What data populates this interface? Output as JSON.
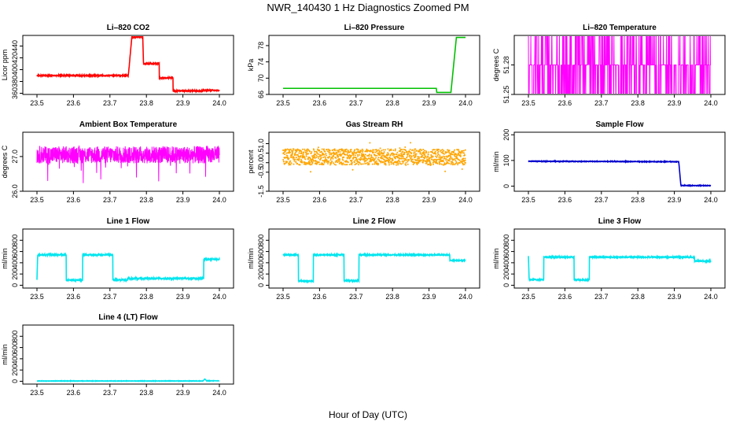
{
  "figure": {
    "title": "NWR_140430  1 Hz Diagnostics Zoomed PM",
    "xlabel": "Hour of Day (UTC)"
  },
  "chart_data": [
    {
      "type": "line",
      "title": "Li–820 CO2",
      "ylabel": "Licor ppm",
      "color": "#ff0000",
      "xlim": [
        23.5,
        24.0
      ],
      "xticks": [
        "23.5",
        "23.6",
        "23.7",
        "23.8",
        "23.9",
        "24.0"
      ],
      "ylim": [
        358,
        458
      ],
      "yticks": [
        "360",
        "380",
        "400",
        "420",
        "440"
      ],
      "noise": 0.8,
      "series": [
        {
          "x": [
            23.5,
            23.75,
            23.752,
            23.76,
            23.76,
            23.79,
            23.792,
            23.805,
            23.805,
            23.835,
            23.835,
            23.873,
            23.873,
            23.955,
            23.955,
            23.958,
            23.96,
            24.0
          ],
          "y": [
            390,
            390,
            400,
            455,
            455,
            455,
            410,
            410,
            410,
            410,
            386,
            386,
            364,
            364,
            368,
            364,
            365,
            365
          ]
        }
      ]
    },
    {
      "type": "line",
      "title": "Li–820 Pressure",
      "ylabel": "kPa",
      "color": "#00c000",
      "xlim": [
        23.5,
        24.0
      ],
      "xticks": [
        "23.5",
        "23.6",
        "23.7",
        "23.8",
        "23.9",
        "24.0"
      ],
      "ylim": [
        66,
        80.5
      ],
      "yticks": [
        "66",
        "70",
        "74",
        "78"
      ],
      "noise": 0,
      "series": [
        {
          "x": [
            23.5,
            23.92,
            23.921,
            23.96,
            23.97,
            23.975,
            24.0
          ],
          "y": [
            67.5,
            67.5,
            66.5,
            66.5,
            75.5,
            80,
            80
          ]
        }
      ]
    },
    {
      "type": "line",
      "title": "Li–820 Temperature",
      "ylabel": "degrees C",
      "color": "#ff00ff",
      "xlim": [
        23.5,
        24.0
      ],
      "xticks": [
        "23.5",
        "23.6",
        "23.7",
        "23.8",
        "23.9",
        "24.0"
      ],
      "ylim": [
        51.25,
        51.31
      ],
      "yticks": [
        "51.25",
        "51.28"
      ],
      "levels": [
        51.25,
        51.28,
        51.31
      ],
      "series": [
        {
          "name": "",
          "x": [
            23.5,
            24.0
          ],
          "y": [
            51.25,
            51.31
          ]
        }
      ]
    },
    {
      "type": "line",
      "title": "Ambient Box Temperature",
      "ylabel": "degrees C",
      "color": "#ff00ff",
      "xlim": [
        23.5,
        24.0
      ],
      "xticks": [
        "23.5",
        "23.6",
        "23.7",
        "23.8",
        "23.9",
        "24.0"
      ],
      "ylim": [
        26.0,
        27.7
      ],
      "yticks": [
        "26.0",
        "27.0"
      ],
      "noise": 0.25,
      "series": [
        {
          "x": [
            23.5,
            24.0
          ],
          "y": [
            27.05,
            27.05
          ]
        }
      ]
    },
    {
      "type": "scatter",
      "title": "Gas Stream RH",
      "ylabel": "percent",
      "color": "#ffa500",
      "xlim": [
        23.5,
        24.0
      ],
      "xticks": [
        "23.5",
        "23.6",
        "23.7",
        "23.8",
        "23.9",
        "24.0"
      ],
      "ylim": [
        -1.5,
        1.6
      ],
      "yticks": [
        "-1.5",
        "-0.5",
        "0.0",
        "0.5",
        "1.0"
      ],
      "noise": 0.42,
      "series": [
        {
          "x": [
            23.5,
            24.0
          ],
          "y": [
            0.3,
            0.3
          ]
        }
      ]
    },
    {
      "type": "line",
      "title": "Sample Flow",
      "ylabel": "ml/min",
      "color": "#0000cd",
      "xlim": [
        23.5,
        24.0
      ],
      "xticks": [
        "23.5",
        "23.6",
        "23.7",
        "23.8",
        "23.9",
        "24.0"
      ],
      "ylim": [
        -20,
        210
      ],
      "yticks": [
        "0",
        "100",
        "200"
      ],
      "noise": 1,
      "series": [
        {
          "x": [
            23.5,
            23.91,
            23.912,
            23.918,
            24.0
          ],
          "y": [
            97,
            95,
            95,
            2,
            2
          ]
        }
      ]
    },
    {
      "type": "line",
      "title": "Line 1 Flow",
      "ylabel": "ml/min",
      "color": "#00e5ee",
      "xlim": [
        23.5,
        24.0
      ],
      "xticks": [
        "23.5",
        "23.6",
        "23.7",
        "23.8",
        "23.9",
        "24.0"
      ],
      "ylim": [
        -50,
        1000
      ],
      "yticks": [
        "0",
        "200",
        "400",
        "600",
        "800"
      ],
      "noise": 12,
      "series": [
        {
          "x": [
            23.5,
            23.5,
            23.502,
            23.58,
            23.58,
            23.625,
            23.625,
            23.708,
            23.708,
            23.748,
            23.748,
            23.957,
            23.957,
            24.0
          ],
          "y": [
            100,
            100,
            540,
            540,
            90,
            90,
            540,
            540,
            95,
            95,
            120,
            120,
            460,
            460
          ]
        }
      ]
    },
    {
      "type": "line",
      "title": "Line 2 Flow",
      "ylabel": "ml/min",
      "color": "#00e5ee",
      "xlim": [
        23.5,
        24.0
      ],
      "xticks": [
        "23.5",
        "23.6",
        "23.7",
        "23.8",
        "23.9",
        "24.0"
      ],
      "ylim": [
        -50,
        1000
      ],
      "yticks": [
        "0",
        "200",
        "400",
        "600",
        "800"
      ],
      "noise": 8,
      "series": [
        {
          "x": [
            23.5,
            23.542,
            23.542,
            23.583,
            23.583,
            23.667,
            23.667,
            23.708,
            23.708,
            23.957,
            23.957,
            24.0
          ],
          "y": [
            540,
            540,
            75,
            75,
            540,
            540,
            80,
            80,
            540,
            540,
            440,
            440
          ]
        }
      ]
    },
    {
      "type": "line",
      "title": "Line 3 Flow",
      "ylabel": "ml/min",
      "color": "#00e5ee",
      "xlim": [
        23.5,
        24.0
      ],
      "xticks": [
        "23.5",
        "23.6",
        "23.7",
        "23.8",
        "23.9",
        "24.0"
      ],
      "ylim": [
        -50,
        1000
      ],
      "yticks": [
        "0",
        "200",
        "400",
        "600",
        "800"
      ],
      "noise": 8,
      "series": [
        {
          "x": [
            23.5,
            23.5,
            23.502,
            23.542,
            23.542,
            23.625,
            23.625,
            23.667,
            23.667,
            23.955,
            23.955,
            24.0
          ],
          "y": [
            520,
            520,
            100,
            100,
            500,
            500,
            95,
            95,
            500,
            500,
            430,
            430
          ]
        }
      ]
    },
    {
      "type": "line",
      "title": "Line 4 (LT) Flow",
      "ylabel": "ml/min",
      "color": "#00e5ee",
      "xlim": [
        23.5,
        24.0
      ],
      "xticks": [
        "23.5",
        "23.6",
        "23.7",
        "23.8",
        "23.9",
        "24.0"
      ],
      "ylim": [
        -50,
        1000
      ],
      "yticks": [
        "0",
        "200",
        "400",
        "600",
        "800"
      ],
      "noise": 3,
      "series": [
        {
          "x": [
            23.5,
            23.955,
            23.96,
            23.965,
            24.0
          ],
          "y": [
            5,
            5,
            40,
            8,
            8
          ]
        }
      ]
    }
  ]
}
